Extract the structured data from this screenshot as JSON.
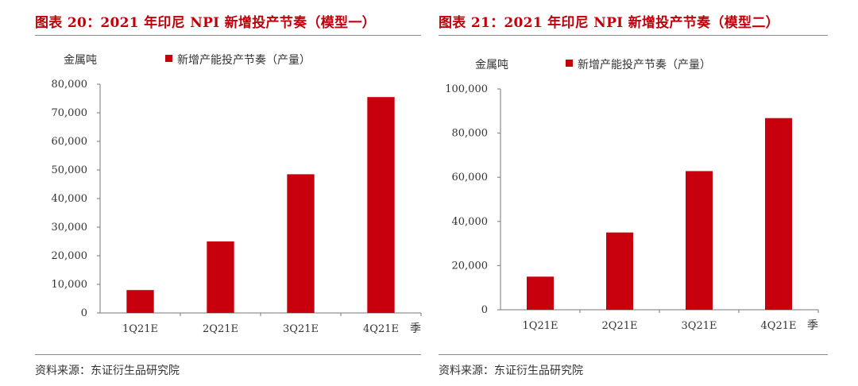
{
  "charts": [
    {
      "title": "图表 20：2021 年印尼 NPI 新增投产节奏（模型一）",
      "source": "资料来源：东证衍生品研究院",
      "chart_data": {
        "type": "bar",
        "ylabel": "金属吨",
        "xlabel": "季",
        "categories": [
          "1Q21E",
          "2Q21E",
          "3Q21E",
          "4Q21E"
        ],
        "series": [
          {
            "name": "新增产能投产节奏（产量）",
            "values": [
              8000,
              25000,
              48500,
              75500
            ]
          }
        ],
        "ylim": [
          0,
          80000
        ],
        "yticks": [
          0,
          10000,
          20000,
          30000,
          40000,
          50000,
          60000,
          70000,
          80000
        ],
        "ytick_labels": [
          "0",
          "10,000",
          "20,000",
          "30,000",
          "40,000",
          "50,000",
          "60,000",
          "70,000",
          "80,000"
        ],
        "bar_color": "#c8000e",
        "grid": false,
        "legend_position": "top"
      }
    },
    {
      "title": "图表 21：2021 年印尼 NPI 新增投产节奏（模型二）",
      "source": "资料来源：东证衍生品研究院",
      "chart_data": {
        "type": "bar",
        "ylabel": "金属吨",
        "xlabel": "季",
        "categories": [
          "1Q21E",
          "2Q21E",
          "3Q21E",
          "4Q21E"
        ],
        "series": [
          {
            "name": "新增产能投产节奏（产量）",
            "values": [
              15000,
              35000,
              62800,
              86800
            ]
          }
        ],
        "ylim": [
          0,
          100000
        ],
        "yticks": [
          0,
          20000,
          40000,
          60000,
          80000,
          100000
        ],
        "ytick_labels": [
          "0",
          "20,000",
          "40,000",
          "60,000",
          "80,000",
          "100,000"
        ],
        "bar_color": "#c8000e",
        "grid": false,
        "legend_position": "top"
      }
    }
  ]
}
